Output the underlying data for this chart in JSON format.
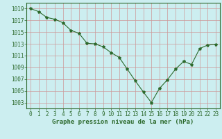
{
  "x": [
    0,
    1,
    2,
    3,
    4,
    5,
    6,
    7,
    8,
    9,
    10,
    11,
    12,
    13,
    14,
    15,
    16,
    17,
    18,
    19,
    20,
    21,
    22,
    23
  ],
  "y": [
    1019,
    1018.5,
    1017.5,
    1017.2,
    1016.6,
    1015.3,
    1014.8,
    1013.1,
    1013.0,
    1012.5,
    1011.5,
    1010.7,
    1008.7,
    1006.7,
    1004.8,
    1003.0,
    1005.4,
    1006.9,
    1008.7,
    1010.0,
    1009.5,
    1012.2,
    1012.8,
    1012.9
  ],
  "line_color": "#2d6a2d",
  "marker": "*",
  "marker_size": 3,
  "bg_color": "#cceef0",
  "grid_color": "#cc9999",
  "xlabel": "Graphe pression niveau de la mer (hPa)",
  "xlabel_color": "#2d6a2d",
  "tick_color": "#2d6a2d",
  "ytick_min": 1003,
  "ytick_max": 1019,
  "ytick_step": 2,
  "xtick_min": 0,
  "xtick_max": 23,
  "ylim_min": 1002,
  "ylim_max": 1020,
  "tick_fontsize": 5.5,
  "xlabel_fontsize": 6.5
}
